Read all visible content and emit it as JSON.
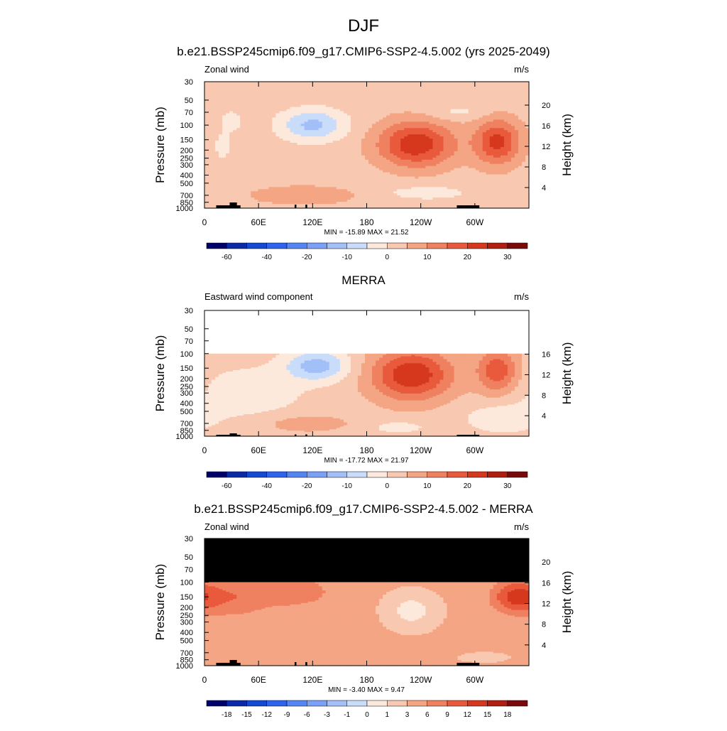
{
  "page_title": "DJF",
  "chart_data": [
    {
      "type": "heatmap",
      "title": "b.e21.BSSP245cmip6.f09_g17.CMIP6-SSP2-4.5.002 (yrs 2025-2049)",
      "variable_label": "Zonal wind",
      "units": "m/s",
      "ylabel": "Pressure (mb)",
      "ylabel_right": "Height (km)",
      "x_ticks": [
        "0",
        "60E",
        "120E",
        "180",
        "120W",
        "60W"
      ],
      "y_ticks": [
        "30",
        "50",
        "70",
        "100",
        "150",
        "200",
        "250",
        "300",
        "400",
        "500",
        "700",
        "850",
        "1000"
      ],
      "height_ticks": [
        "20",
        "16",
        "12",
        "8",
        "4"
      ],
      "plev_top": 30,
      "stats": "MIN = -15.89  MAX =  21.52",
      "colorbar_labels": [
        "-60",
        "-40",
        "-20",
        "-10",
        "0",
        "10",
        "20",
        "30"
      ],
      "colorbar_bins": 16,
      "colorbar_levels": [
        -70,
        -60,
        -50,
        -40,
        -30,
        -20,
        -15,
        -10,
        -5,
        0,
        5,
        10,
        15,
        20,
        25,
        30,
        35
      ],
      "features": [
        {
          "lon": 120,
          "p": 100,
          "value": -14,
          "lon_w": 25,
          "p_w": 0.3
        },
        {
          "lon": 235,
          "p": 170,
          "value": 21.5,
          "lon_w": 30,
          "p_w": 0.45
        },
        {
          "lon": 325,
          "p": 160,
          "value": 19,
          "lon_w": 18,
          "p_w": 0.45
        },
        {
          "lon": 20,
          "p": 180,
          "value": -6,
          "lon_w": 6,
          "p_w": 0.25
        },
        {
          "lon": 30,
          "p": 90,
          "value": -6,
          "lon_w": 8,
          "p_w": 0.2
        },
        {
          "lon": 110,
          "p": 700,
          "value": 6,
          "lon_w": 45,
          "p_w": 0.2
        },
        {
          "lon": 245,
          "p": 650,
          "value": -5,
          "lon_w": 35,
          "p_w": 0.15
        },
        {
          "lon": 280,
          "p": 70,
          "value": -4,
          "lon_w": 25,
          "p_w": 0.15
        }
      ],
      "background_value": 2.5,
      "data_top_p": 30
    },
    {
      "type": "heatmap",
      "title": "MERRA",
      "variable_label": "Eastward wind component",
      "units": "m/s",
      "ylabel": "Pressure (mb)",
      "ylabel_right": "Height (km)",
      "x_ticks": [
        "0",
        "60E",
        "120E",
        "180",
        "120W",
        "60W"
      ],
      "y_ticks": [
        "30",
        "50",
        "70",
        "100",
        "150",
        "200",
        "250",
        "300",
        "400",
        "500",
        "700",
        "850",
        "1000"
      ],
      "height_ticks": [
        "16",
        "12",
        "8",
        "4"
      ],
      "plev_top": 30,
      "stats": "MIN = -17.72  MAX =  21.97",
      "colorbar_labels": [
        "-60",
        "-40",
        "-20",
        "-10",
        "0",
        "10",
        "20",
        "30"
      ],
      "colorbar_bins": 16,
      "colorbar_levels": [
        -70,
        -60,
        -50,
        -40,
        -30,
        -20,
        -15,
        -10,
        -5,
        0,
        5,
        10,
        15,
        20,
        25,
        30,
        35
      ],
      "features": [
        {
          "lon": 125,
          "p": 140,
          "value": -15,
          "lon_w": 25,
          "p_w": 0.3
        },
        {
          "lon": 230,
          "p": 180,
          "value": 22,
          "lon_w": 32,
          "p_w": 0.5
        },
        {
          "lon": 325,
          "p": 160,
          "value": 16,
          "lon_w": 16,
          "p_w": 0.45
        },
        {
          "lon": 50,
          "p": 300,
          "value": -6,
          "lon_w": 40,
          "p_w": 0.5
        },
        {
          "lon": 110,
          "p": 700,
          "value": 5,
          "lon_w": 40,
          "p_w": 0.2
        },
        {
          "lon": 215,
          "p": 780,
          "value": -7,
          "lon_w": 18,
          "p_w": 0.1
        },
        {
          "lon": 330,
          "p": 600,
          "value": -6,
          "lon_w": 30,
          "p_w": 0.3
        }
      ],
      "background_value": 2.5,
      "data_top_p": 100
    },
    {
      "type": "heatmap",
      "title": "b.e21.BSSP245cmip6.f09_g17.CMIP6-SSP2-4.5.002 - MERRA",
      "variable_label": "Zonal wind",
      "units": "m/s",
      "ylabel": "Pressure (mb)",
      "ylabel_right": "Height (km)",
      "x_ticks": [
        "0",
        "60E",
        "120E",
        "180",
        "120W",
        "60W"
      ],
      "y_ticks": [
        "30",
        "50",
        "70",
        "100",
        "150",
        "200",
        "250",
        "300",
        "400",
        "500",
        "700",
        "850",
        "1000"
      ],
      "height_ticks": [
        "20",
        "16",
        "12",
        "8",
        "4"
      ],
      "plev_top": 30,
      "stats": "MIN =  -3.40  MAX =   9.47",
      "colorbar_labels": [
        "-18",
        "-15",
        "-12",
        "-9",
        "-6",
        "-3",
        "-1",
        "0",
        "1",
        "3",
        "6",
        "9",
        "12",
        "15",
        "18"
      ],
      "colorbar_bins": 16,
      "colorbar_levels": [
        -21,
        -18,
        -15,
        -12,
        -9,
        -6,
        -3,
        -1,
        0,
        1,
        3,
        6,
        9,
        12,
        15,
        18,
        21
      ],
      "features": [
        {
          "lon": 230,
          "p": 220,
          "value": -3.4,
          "lon_w": 20,
          "p_w": 0.35
        },
        {
          "lon": 345,
          "p": 150,
          "value": 9,
          "lon_w": 18,
          "p_w": 0.3
        },
        {
          "lon": 30,
          "p": 150,
          "value": 5,
          "lon_w": 30,
          "p_w": 0.4
        },
        {
          "lon": 100,
          "p": 130,
          "value": 4.5,
          "lon_w": 30,
          "p_w": 0.3
        },
        {
          "lon": 170,
          "p": 300,
          "value": 0.5,
          "lon_w": 10,
          "p_w": 0.2
        },
        {
          "lon": 310,
          "p": 800,
          "value": -1.5,
          "lon_w": 20,
          "p_w": 0.1
        }
      ],
      "background_value": 3.5,
      "data_top_p": 100
    }
  ],
  "colors": {
    "colorbar": [
      "#00006b",
      "#0a2aa8",
      "#1449d4",
      "#2e63f0",
      "#5584f5",
      "#7aa0f7",
      "#a2bff8",
      "#c9dcfa",
      "#fde9dc",
      "#f8c8b0",
      "#f4a584",
      "#ef8060",
      "#e95a3c",
      "#d6381e",
      "#b01e12",
      "#7a0a0a"
    ],
    "topography": "#000000",
    "missing_top_bottom": "#000000"
  }
}
